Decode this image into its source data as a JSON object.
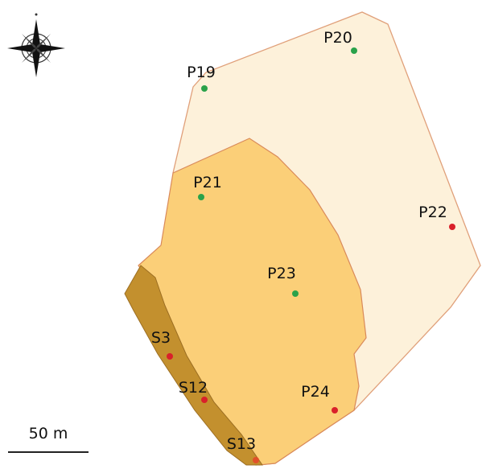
{
  "points": [
    {
      "label": "P19",
      "color": "#2aa24a"
    },
    {
      "label": "P20",
      "color": "#2aa24a"
    },
    {
      "label": "P21",
      "color": "#2aa24a"
    },
    {
      "label": "P22",
      "color": "#d9202a"
    },
    {
      "label": "P23",
      "color": "#2aa24a"
    },
    {
      "label": "P24",
      "color": "#d9202a"
    },
    {
      "label": "S3",
      "color": "#d9202a"
    },
    {
      "label": "S12",
      "color": "#d9202a"
    },
    {
      "label": "S13",
      "color": "#e0502a"
    }
  ],
  "scale_bar": {
    "label": "50 m"
  }
}
